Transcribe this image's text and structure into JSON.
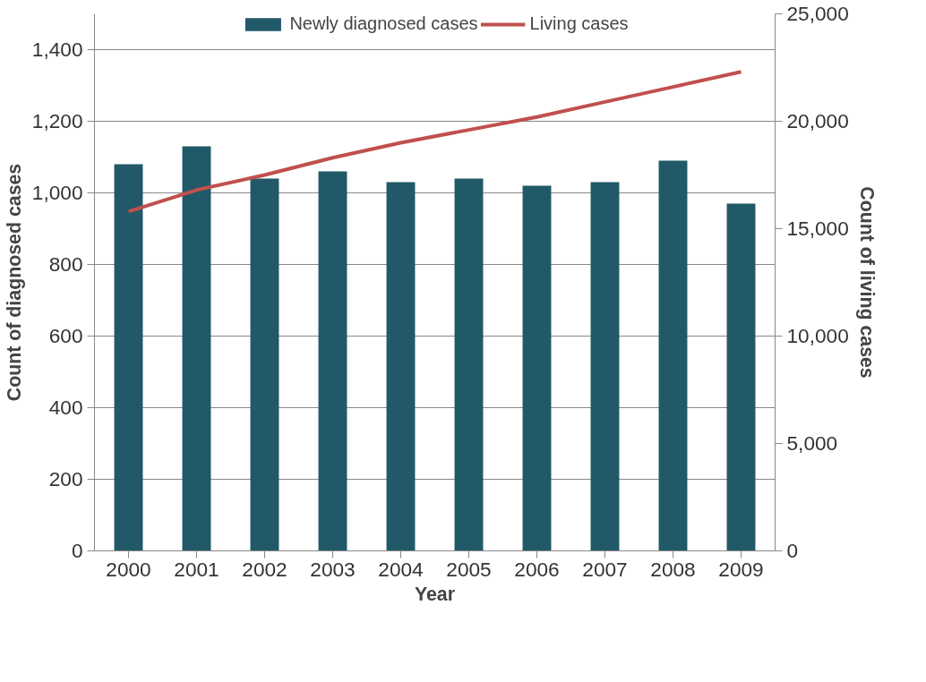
{
  "chart_data": {
    "type": "bar",
    "xlabel": "Year",
    "ylabel": "Count of diagnosed cases",
    "y2label": "Count of living cases",
    "categories": [
      "2000",
      "2001",
      "2002",
      "2003",
      "2004",
      "2005",
      "2006",
      "2007",
      "2008",
      "2009"
    ],
    "series": [
      {
        "name": "Newly diagnosed cases",
        "color": "#215968",
        "values": [
          1080,
          1130,
          1040,
          1060,
          1030,
          1040,
          1020,
          1030,
          1090,
          970
        ]
      },
      {
        "name": "Living cases",
        "type": "line",
        "axis": "y2",
        "color": "#c0504d",
        "values": [
          15800,
          16800,
          17500,
          18300,
          19000,
          19600,
          20200,
          20900,
          21600,
          22300
        ]
      }
    ],
    "ylim": [
      0,
      1500
    ],
    "yticks": [
      {
        "value": 0,
        "label": "0"
      },
      {
        "value": 200,
        "label": "200"
      },
      {
        "value": 400,
        "label": "400"
      },
      {
        "value": 600,
        "label": "600"
      },
      {
        "value": 800,
        "label": "800"
      },
      {
        "value": 1000,
        "label": "1,000"
      },
      {
        "value": 1200,
        "label": "1,200"
      },
      {
        "value": 1400,
        "label": "1,400"
      }
    ],
    "y2lim": [
      0,
      25000
    ],
    "y2ticks": [
      {
        "value": 0,
        "label": "0"
      },
      {
        "value": 5000,
        "label": "5,000"
      },
      {
        "value": 10000,
        "label": "10,000"
      },
      {
        "value": 15000,
        "label": "15,000"
      },
      {
        "value": 20000,
        "label": "20,000"
      },
      {
        "value": 25000,
        "label": "25,000"
      }
    ],
    "grid": "y",
    "legend": "top",
    "marker": "none",
    "line_style": "solid"
  }
}
